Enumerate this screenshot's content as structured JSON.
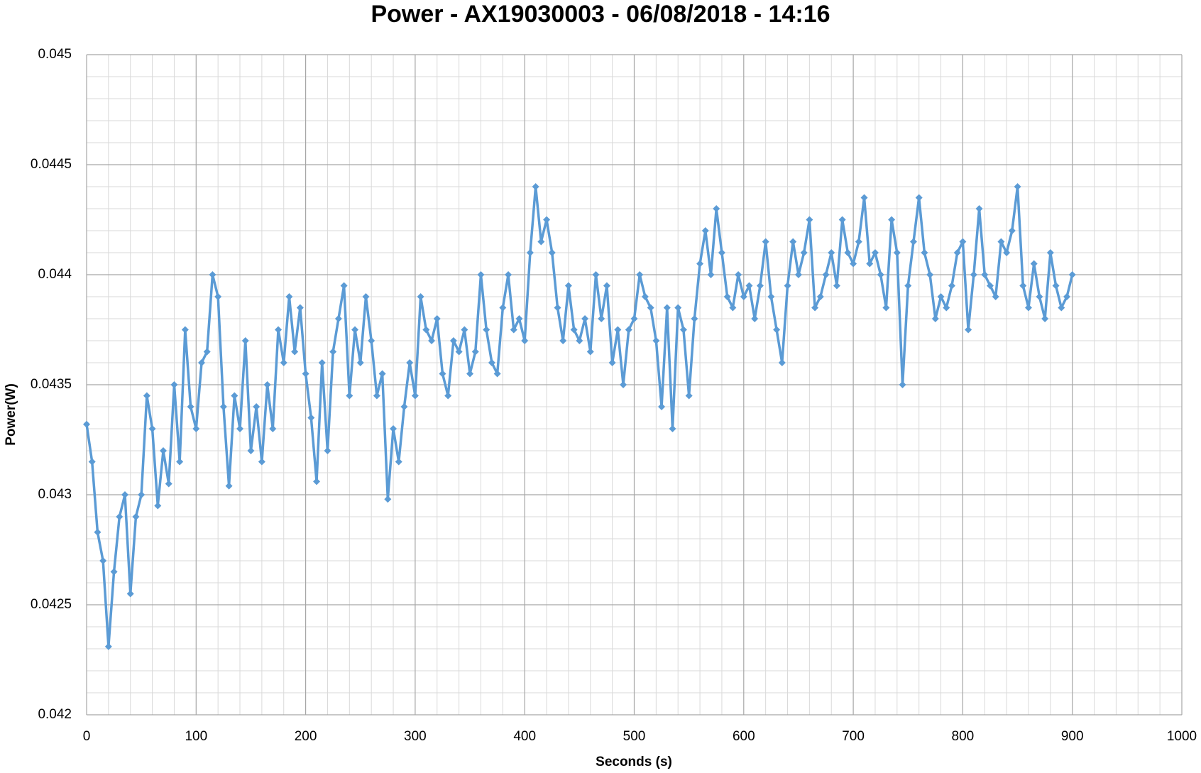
{
  "chart_data": {
    "type": "line",
    "title": "Power - AX19030003 - 06/08/2018 - 14:16",
    "x_label": "Seconds (s)",
    "y_label": "Power(W)",
    "xlim": [
      0,
      1000
    ],
    "xticks": [
      0,
      100,
      200,
      300,
      400,
      500,
      600,
      700,
      800,
      900,
      1000
    ],
    "ylim": [
      0.042,
      0.045
    ],
    "yticks": [
      0.042,
      0.0425,
      0.043,
      0.0435,
      0.044,
      0.0445,
      0.045
    ],
    "grid": true,
    "minor_grid_divisions": 5,
    "marker": "diamond",
    "x": [
      0,
      5,
      10,
      15,
      20,
      25,
      30,
      35,
      40,
      45,
      50,
      55,
      60,
      65,
      70,
      75,
      80,
      85,
      90,
      95,
      100,
      105,
      110,
      115,
      120,
      125,
      130,
      135,
      140,
      145,
      150,
      155,
      160,
      165,
      170,
      175,
      180,
      185,
      190,
      195,
      200,
      205,
      210,
      215,
      220,
      225,
      230,
      235,
      240,
      245,
      250,
      255,
      260,
      265,
      270,
      275,
      280,
      285,
      290,
      295,
      300,
      305,
      310,
      315,
      320,
      325,
      330,
      335,
      340,
      345,
      350,
      355,
      360,
      365,
      370,
      375,
      380,
      385,
      390,
      395,
      400,
      405,
      410,
      415,
      420,
      425,
      430,
      435,
      440,
      445,
      450,
      455,
      460,
      465,
      470,
      475,
      480,
      485,
      490,
      495,
      500,
      505,
      510,
      515,
      520,
      525,
      530,
      535,
      540,
      545,
      550,
      555,
      560,
      565,
      570,
      575,
      580,
      585,
      590,
      595,
      600,
      605,
      610,
      615,
      620,
      625,
      630,
      635,
      640,
      645,
      650,
      655,
      660,
      665,
      670,
      675,
      680,
      685,
      690,
      695,
      700,
      705,
      710,
      715,
      720,
      725,
      730,
      735,
      740,
      745,
      750,
      755,
      760,
      765,
      770,
      775,
      780,
      785,
      790,
      795,
      800,
      805,
      810,
      815,
      820,
      825,
      830,
      835,
      840,
      845,
      850,
      855,
      860,
      865,
      870,
      875,
      880,
      885,
      890,
      895,
      900
    ],
    "series": [
      {
        "name": "Power(W)",
        "color": "#5b9bd5",
        "values": [
          0.04332,
          0.04315,
          0.04283,
          0.0427,
          0.04231,
          0.04265,
          0.0429,
          0.043,
          0.04255,
          0.0429,
          0.043,
          0.04345,
          0.0433,
          0.04295,
          0.0432,
          0.04305,
          0.0435,
          0.04315,
          0.04375,
          0.0434,
          0.0433,
          0.0436,
          0.04365,
          0.044,
          0.0439,
          0.0434,
          0.04304,
          0.04345,
          0.0433,
          0.0437,
          0.0432,
          0.0434,
          0.04315,
          0.0435,
          0.0433,
          0.04375,
          0.0436,
          0.0439,
          0.04365,
          0.04385,
          0.04355,
          0.04335,
          0.04306,
          0.0436,
          0.0432,
          0.04365,
          0.0438,
          0.04395,
          0.04345,
          0.04375,
          0.0436,
          0.0439,
          0.0437,
          0.04345,
          0.04355,
          0.04298,
          0.0433,
          0.04315,
          0.0434,
          0.0436,
          0.04345,
          0.0439,
          0.04375,
          0.0437,
          0.0438,
          0.04355,
          0.04345,
          0.0437,
          0.04365,
          0.04375,
          0.04355,
          0.04365,
          0.044,
          0.04375,
          0.0436,
          0.04355,
          0.04385,
          0.044,
          0.04375,
          0.0438,
          0.0437,
          0.0441,
          0.0444,
          0.04415,
          0.04425,
          0.0441,
          0.04385,
          0.0437,
          0.04395,
          0.04375,
          0.0437,
          0.0438,
          0.04365,
          0.044,
          0.0438,
          0.04395,
          0.0436,
          0.04375,
          0.0435,
          0.04375,
          0.0438,
          0.044,
          0.0439,
          0.04385,
          0.0437,
          0.0434,
          0.04385,
          0.0433,
          0.04385,
          0.04375,
          0.04345,
          0.0438,
          0.04405,
          0.0442,
          0.044,
          0.0443,
          0.0441,
          0.0439,
          0.04385,
          0.044,
          0.0439,
          0.04395,
          0.0438,
          0.04395,
          0.04415,
          0.0439,
          0.04375,
          0.0436,
          0.04395,
          0.04415,
          0.044,
          0.0441,
          0.04425,
          0.04385,
          0.0439,
          0.044,
          0.0441,
          0.04395,
          0.04425,
          0.0441,
          0.04405,
          0.04415,
          0.04435,
          0.04405,
          0.0441,
          0.044,
          0.04385,
          0.04425,
          0.0441,
          0.0435,
          0.04395,
          0.04415,
          0.04435,
          0.0441,
          0.044,
          0.0438,
          0.0439,
          0.04385,
          0.04395,
          0.0441,
          0.04415,
          0.04375,
          0.044,
          0.0443,
          0.044,
          0.04395,
          0.0439,
          0.04415,
          0.0441,
          0.0442,
          0.0444,
          0.04395,
          0.04385,
          0.04405,
          0.0439,
          0.0438,
          0.0441,
          0.04395,
          0.04385,
          0.0439,
          0.044
        ]
      }
    ]
  }
}
